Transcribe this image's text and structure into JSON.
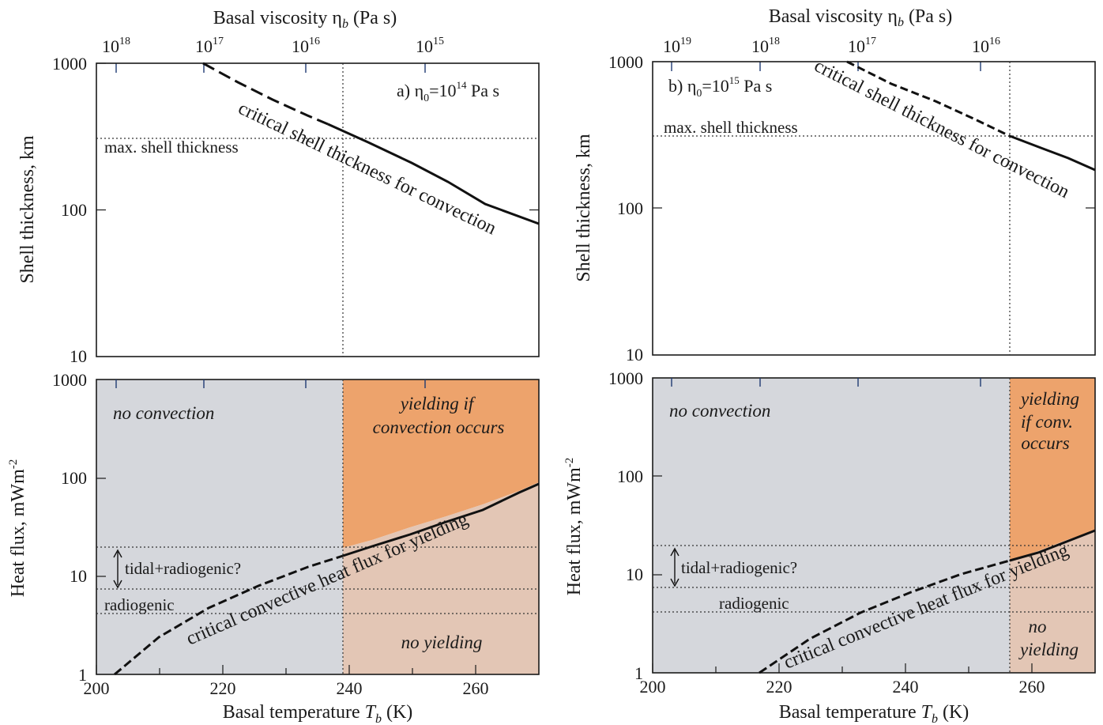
{
  "chart_data": [
    {
      "id": "a_thickness",
      "type": "line",
      "panel_label": "a) η0=10^14 Pa s",
      "panel_label_parts": {
        "prefix": "a) η",
        "sub": "0",
        "mid": "=10",
        "sup": "14",
        "suffix": " Pa s"
      },
      "xlabel": "",
      "ylabel": "Shell thickness, km",
      "top_xlabel": "Basal viscosity ηb (Pa s)",
      "xlim": [
        200,
        270
      ],
      "ylim": [
        10,
        1000
      ],
      "yscale": "log",
      "yticks": [
        "1000",
        "100",
        "10"
      ],
      "top_ticks": [
        {
          "label_base": "10",
          "label_exp": "18",
          "T": 202.8
        },
        {
          "label_base": "10",
          "label_exp": "17",
          "T": 217.1
        },
        {
          "label_base": "10",
          "label_exp": "16",
          "T": 232.6
        },
        {
          "label_base": "10",
          "label_exp": "15",
          "T": 250.7
        }
      ],
      "series": [
        {
          "style": "dashed",
          "x": [
            217,
            223,
            229,
            235,
            238.5
          ],
          "y": [
            1000,
            700,
            500,
            380,
            320
          ]
        },
        {
          "style": "solid",
          "x": [
            238.5,
            245,
            252,
            258,
            264,
            270
          ],
          "y": [
            320,
            240,
            175,
            135,
            103,
            82
          ]
        }
      ],
      "vline_x": 239,
      "hline": {
        "y": 300,
        "label": "max. shell thickness"
      },
      "curve_label": "critical shell thickness for convection"
    },
    {
      "id": "a_heatflux",
      "type": "line",
      "xlabel": "Basal temperature Tb (K)",
      "xlabel_parts": {
        "pre": "Basal temperature ",
        "var": "T",
        "sub": "b",
        "post": " (K)"
      },
      "ylabel": "Heat flux, mWm-2",
      "ylabel_parts": {
        "main": "Heat flux, mWm",
        "sup": "-2"
      },
      "xlim": [
        200,
        270
      ],
      "ylim": [
        1,
        1000
      ],
      "yscale": "log",
      "xticks": [
        200,
        220,
        240,
        260
      ],
      "xtick_labels": [
        "200",
        "220",
        "240",
        "260"
      ],
      "yticks": [
        "1000",
        "100",
        "10",
        "1"
      ],
      "series": [
        {
          "style": "dashed",
          "x": [
            202.8,
            210,
            218,
            226,
            234,
            239
          ],
          "y": [
            1,
            2.4,
            4.8,
            8.2,
            12.5,
            15.5
          ]
        },
        {
          "style": "solid",
          "x": [
            239,
            245,
            251,
            257,
            263,
            270
          ],
          "y": [
            15.5,
            22,
            31,
            43,
            59,
            88
          ]
        }
      ],
      "vline_x": 239,
      "hlines": [
        20,
        7.5,
        4.2
      ],
      "labels": {
        "tidal": "tidal+radiogenic?",
        "radiogenic": "radiogenic",
        "no_convection": "no convection",
        "yielding_line1": "yielding if",
        "yielding_line2": "convection occurs",
        "no_yielding": "no yielding",
        "curve": "critical convective heat flux for yielding"
      }
    },
    {
      "id": "b_thickness",
      "type": "line",
      "panel_label": "b) η0=10^15 Pa s",
      "panel_label_parts": {
        "prefix": "b) η",
        "sub": "0",
        "mid": "=10",
        "sup": "15",
        "suffix": " Pa s"
      },
      "xlabel": "",
      "ylabel": "Shell thickness, km",
      "top_xlabel": "Basal viscosity ηb (Pa s)",
      "xlim": [
        200,
        270
      ],
      "ylim": [
        10,
        1000
      ],
      "yscale": "log",
      "yticks": [
        "1000",
        "100",
        "10"
      ],
      "top_ticks": [
        {
          "label_base": "10",
          "label_exp": "19",
          "T": 203.1
        },
        {
          "label_base": "10",
          "label_exp": "18",
          "T": 217.3
        },
        {
          "label_base": "10",
          "label_exp": "17",
          "T": 233.1
        },
        {
          "label_base": "10",
          "label_exp": "16",
          "T": 252.1
        }
      ],
      "series": [
        {
          "style": "dashed",
          "x": [
            231,
            238,
            245,
            251,
            256.7
          ],
          "y": [
            1000,
            700,
            500,
            380,
            300
          ]
        },
        {
          "style": "solid",
          "x": [
            256.7,
            262,
            266,
            270
          ],
          "y": [
            300,
            245,
            210,
            178
          ]
        }
      ],
      "vline_x": 256.7,
      "hline": {
        "y": 300,
        "label": "max. shell thickness"
      },
      "curve_label": "critical shell thickness for convection"
    },
    {
      "id": "b_heatflux",
      "type": "line",
      "xlabel": "Basal temperature Tb (K)",
      "xlabel_parts": {
        "pre": "Basal temperature ",
        "var": "T",
        "sub": "b",
        "post": " (K)"
      },
      "ylabel": "Heat flux, mWm-2",
      "ylabel_parts": {
        "main": "Heat flux, mWm",
        "sup": "-2"
      },
      "xlim": [
        200,
        270
      ],
      "ylim": [
        1,
        1000
      ],
      "yscale": "log",
      "xticks": [
        200,
        220,
        240,
        260
      ],
      "xtick_labels": [
        "200",
        "220",
        "240",
        "260"
      ],
      "yticks": [
        "1000",
        "100",
        "10",
        "1"
      ],
      "series": [
        {
          "style": "dashed",
          "x": [
            217,
            225,
            233,
            241,
            249,
            256.7
          ],
          "y": [
            1,
            2.2,
            3.9,
            6.2,
            9.5,
            14
          ]
        },
        {
          "style": "solid",
          "x": [
            256.7,
            261,
            265.5,
            270
          ],
          "y": [
            14,
            17.5,
            22,
            28
          ]
        }
      ],
      "vline_x": 256.7,
      "hlines": [
        20,
        7.5,
        4.2
      ],
      "labels": {
        "tidal": "tidal+radiogenic?",
        "radiogenic": "radiogenic",
        "no_convection": "no convection",
        "yielding_line1": "yielding",
        "yielding_line2": "if conv.",
        "yielding_line3": "occurs",
        "no_yielding_line1": "no",
        "no_yielding_line2": "yielding",
        "curve": "critical convective heat flux for yielding"
      }
    }
  ],
  "colors": {
    "no_convection": "#d5d7dc",
    "yielding": "#eda36c",
    "no_yielding": "#e3c6b5",
    "top_tick": "#1f3a73"
  }
}
